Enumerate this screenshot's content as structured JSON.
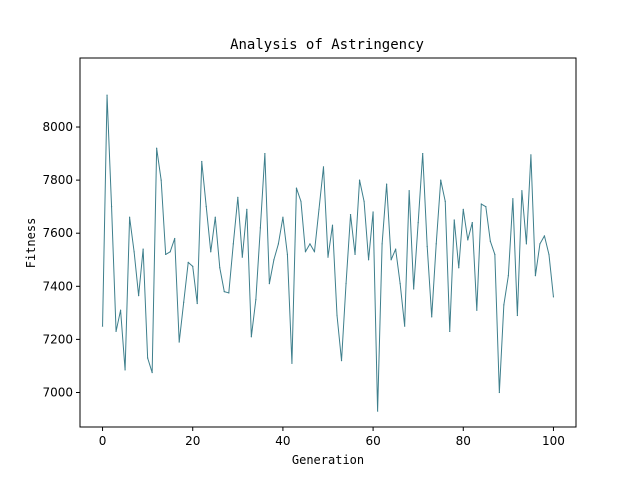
{
  "chart_data": {
    "type": "line",
    "title": "Analysis of Astringency",
    "xlabel": "Generation",
    "ylabel": "Fitness",
    "xlim": [
      -5,
      105
    ],
    "ylim": [
      6870,
      8260
    ],
    "xticks": [
      0,
      20,
      40,
      60,
      80,
      100
    ],
    "yticks": [
      7000,
      7200,
      7400,
      7600,
      7800,
      8000
    ],
    "grid": false,
    "line_color": "#3e7f8c",
    "series": [
      {
        "x": [
          0,
          1,
          2,
          3,
          4,
          5,
          6,
          7,
          8,
          9,
          10,
          11,
          12,
          13,
          14,
          15,
          16,
          17,
          18,
          19,
          20,
          21,
          22,
          23,
          24,
          25,
          26,
          27,
          28,
          29,
          30,
          31,
          32,
          33,
          34,
          35,
          36,
          37,
          38,
          39,
          40,
          41,
          42,
          43,
          44,
          45,
          46,
          47,
          48,
          49,
          50,
          51,
          52,
          53,
          54,
          55,
          56,
          57,
          58,
          59,
          60,
          61,
          62,
          63,
          64,
          65,
          66,
          67,
          68,
          69,
          70,
          71,
          72,
          73,
          74,
          75,
          76,
          77,
          78,
          79,
          80,
          81,
          82,
          83,
          84,
          85,
          86,
          87,
          88,
          89,
          90,
          91,
          92,
          93,
          94,
          95,
          96,
          97,
          98,
          99,
          100
        ],
        "values": [
          7250,
          8120,
          7700,
          7230,
          7310,
          7085,
          7660,
          7530,
          7365,
          7540,
          7130,
          7075,
          7920,
          7800,
          7520,
          7530,
          7580,
          7190,
          7340,
          7490,
          7475,
          7335,
          7870,
          7700,
          7530,
          7660,
          7470,
          7380,
          7375,
          7560,
          7735,
          7510,
          7690,
          7210,
          7350,
          7620,
          7900,
          7410,
          7500,
          7560,
          7660,
          7520,
          7110,
          7770,
          7720,
          7530,
          7560,
          7530,
          7690,
          7850,
          7510,
          7630,
          7290,
          7120,
          7410,
          7670,
          7520,
          7800,
          7720,
          7500,
          7680,
          6930,
          7560,
          7785,
          7500,
          7540,
          7410,
          7250,
          7760,
          7390,
          7640,
          7900,
          7550,
          7285,
          7560,
          7800,
          7720,
          7230,
          7650,
          7470,
          7690,
          7575,
          7640,
          7310,
          7710,
          7700,
          7570,
          7520,
          7000,
          7330,
          7440,
          7730,
          7290,
          7760,
          7560,
          7895,
          7440,
          7560,
          7590,
          7520,
          7360
        ]
      }
    ]
  }
}
